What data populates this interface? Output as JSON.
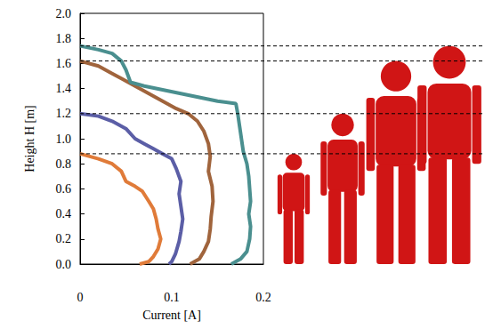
{
  "chart_data": {
    "type": "line",
    "x_label": "Current [A]",
    "y_label": "Height H [m]",
    "xlim": [
      0,
      0.2
    ],
    "xticks": [
      0,
      0.1,
      0.2
    ],
    "ylim": [
      0,
      2
    ],
    "yticks": [
      {
        "value": 0,
        "label": "0.0"
      },
      0.2,
      0.4,
      0.6,
      0.8,
      {
        "value": 1,
        "label": "1.0"
      },
      1.2,
      1.4,
      1.6,
      1.8,
      {
        "value": 2,
        "label": "2.0"
      }
    ],
    "grid": false,
    "series": [
      {
        "color": "#e07b39",
        "marker": "none",
        "line_style": "solid",
        "x": [
          0,
          0.02,
          0.035,
          0.045,
          0.05,
          0.06,
          0.068,
          0.075,
          0.08,
          0.083,
          0.085,
          0.088,
          0.085,
          0.08,
          0.075,
          0.065
        ],
        "values": [
          0.88,
          0.84,
          0.8,
          0.74,
          0.66,
          0.62,
          0.58,
          0.5,
          0.44,
          0.36,
          0.28,
          0.2,
          0.12,
          0.06,
          0.02,
          0
        ]
      },
      {
        "color": "#5b5ea6",
        "marker": "none",
        "line_style": "solid",
        "x": [
          0,
          0.02,
          0.035,
          0.05,
          0.06,
          0.07,
          0.08,
          0.09,
          0.1,
          0.105,
          0.11,
          0.108,
          0.11,
          0.112,
          0.11,
          0.108,
          0.104,
          0.1,
          0.097
        ],
        "values": [
          1.2,
          1.18,
          1.14,
          1.08,
          1.0,
          0.96,
          0.92,
          0.88,
          0.84,
          0.76,
          0.66,
          0.56,
          0.46,
          0.36,
          0.26,
          0.18,
          0.08,
          0.02,
          0
        ]
      },
      {
        "color": "#a0643c",
        "marker": "none",
        "line_style": "solid",
        "x": [
          0,
          0.02,
          0.035,
          0.045,
          0.06,
          0.075,
          0.09,
          0.105,
          0.118,
          0.128,
          0.135,
          0.14,
          0.142,
          0.14,
          0.144,
          0.145,
          0.143,
          0.142,
          0.14,
          0.135,
          0.13,
          0.12
        ],
        "values": [
          1.62,
          1.58,
          1.52,
          1.48,
          1.42,
          1.36,
          1.3,
          1.24,
          1.2,
          1.14,
          1.06,
          0.96,
          0.86,
          0.74,
          0.62,
          0.5,
          0.38,
          0.28,
          0.18,
          0.1,
          0.04,
          0
        ]
      },
      {
        "color": "#4a8f8f",
        "marker": "none",
        "line_style": "solid",
        "x": [
          0,
          0.02,
          0.035,
          0.045,
          0.05,
          0.055,
          0.07,
          0.09,
          0.11,
          0.13,
          0.15,
          0.17,
          0.172,
          0.174,
          0.176,
          0.178,
          0.182,
          0.184,
          0.185,
          0.186,
          0.184,
          0.186,
          0.185,
          0.182,
          0.175,
          0.165
        ],
        "values": [
          1.74,
          1.71,
          1.68,
          1.62,
          1.55,
          1.45,
          1.42,
          1.39,
          1.36,
          1.33,
          1.3,
          1.28,
          1.2,
          1.1,
          1.0,
          0.9,
          0.8,
          0.7,
          0.6,
          0.5,
          0.4,
          0.3,
          0.2,
          0.1,
          0.04,
          0
        ]
      }
    ]
  }
}
